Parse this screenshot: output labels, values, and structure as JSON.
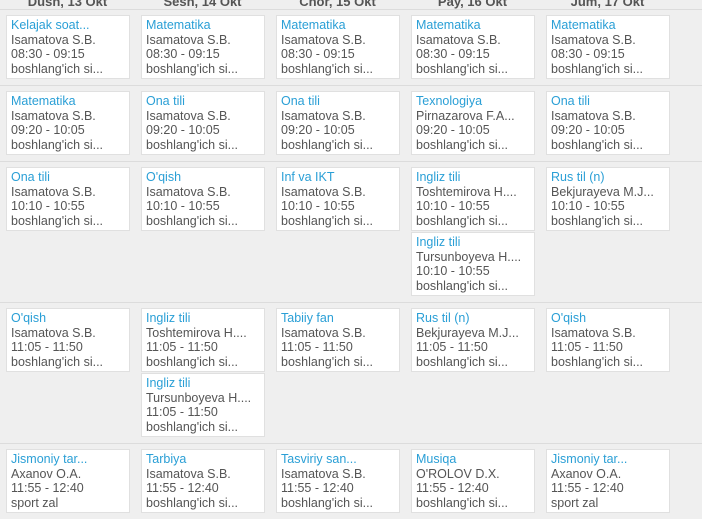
{
  "days": [
    "Dush, 13 Okt",
    "Sesh, 14 Okt",
    "Chor, 15 Okt",
    "Pay, 16 Okt",
    "Jum, 17 Okt"
  ],
  "colors": {
    "subject": "#2a9fd6",
    "text": "#555555",
    "background": "#efefef"
  },
  "rows": [
    {
      "cells": [
        [
          {
            "subject": "Kelajak soat...",
            "teacher": "Isamatova S.B.",
            "time": "08:30 - 09:15",
            "room": "boshlang'ich si..."
          }
        ],
        [
          {
            "subject": "Matematika",
            "teacher": "Isamatova S.B.",
            "time": "08:30 - 09:15",
            "room": "boshlang'ich si..."
          }
        ],
        [
          {
            "subject": "Matematika",
            "teacher": "Isamatova S.B.",
            "time": "08:30 - 09:15",
            "room": "boshlang'ich si..."
          }
        ],
        [
          {
            "subject": "Matematika",
            "teacher": "Isamatova S.B.",
            "time": "08:30 - 09:15",
            "room": "boshlang'ich si..."
          }
        ],
        [
          {
            "subject": "Matematika",
            "teacher": "Isamatova S.B.",
            "time": "08:30 - 09:15",
            "room": "boshlang'ich si..."
          }
        ]
      ]
    },
    {
      "cells": [
        [
          {
            "subject": "Matematika",
            "teacher": "Isamatova S.B.",
            "time": "09:20 - 10:05",
            "room": "boshlang'ich si..."
          }
        ],
        [
          {
            "subject": "Ona tili",
            "teacher": "Isamatova S.B.",
            "time": "09:20 - 10:05",
            "room": "boshlang'ich si..."
          }
        ],
        [
          {
            "subject": "Ona tili",
            "teacher": "Isamatova S.B.",
            "time": "09:20 - 10:05",
            "room": "boshlang'ich si..."
          }
        ],
        [
          {
            "subject": "Texnologiya",
            "teacher": "Pirnazarova F.A...",
            "time": "09:20 - 10:05",
            "room": "boshlang'ich si..."
          }
        ],
        [
          {
            "subject": "Ona tili",
            "teacher": "Isamatova S.B.",
            "time": "09:20 - 10:05",
            "room": "boshlang'ich si..."
          }
        ]
      ]
    },
    {
      "cells": [
        [
          {
            "subject": "Ona tili",
            "teacher": "Isamatova S.B.",
            "time": "10:10 - 10:55",
            "room": "boshlang'ich si..."
          }
        ],
        [
          {
            "subject": "O'qish",
            "teacher": "Isamatova S.B.",
            "time": "10:10 - 10:55",
            "room": "boshlang'ich si..."
          }
        ],
        [
          {
            "subject": "Inf va IKT",
            "teacher": "Isamatova S.B.",
            "time": "10:10 - 10:55",
            "room": "boshlang'ich si..."
          }
        ],
        [
          {
            "subject": "Ingliz tili",
            "teacher": "Toshtemirova H....",
            "time": "10:10 - 10:55",
            "room": "boshlang'ich si..."
          },
          {
            "subject": "Ingliz tili",
            "teacher": "Tursunboyeva H....",
            "time": "10:10 - 10:55",
            "room": "boshlang'ich si..."
          }
        ],
        [
          {
            "subject": "Rus til (n)",
            "teacher": "Bekjurayeva M.J...",
            "time": "10:10 - 10:55",
            "room": "boshlang'ich si..."
          }
        ]
      ]
    },
    {
      "cells": [
        [
          {
            "subject": "O'qish",
            "teacher": "Isamatova S.B.",
            "time": "11:05 - 11:50",
            "room": "boshlang'ich si..."
          }
        ],
        [
          {
            "subject": "Ingliz tili",
            "teacher": "Toshtemirova H....",
            "time": "11:05 - 11:50",
            "room": "boshlang'ich si..."
          },
          {
            "subject": "Ingliz tili",
            "teacher": "Tursunboyeva H....",
            "time": "11:05 - 11:50",
            "room": "boshlang'ich si..."
          }
        ],
        [
          {
            "subject": "Tabiiy fan",
            "teacher": "Isamatova S.B.",
            "time": "11:05 - 11:50",
            "room": "boshlang'ich si..."
          }
        ],
        [
          {
            "subject": "Rus til (n)",
            "teacher": "Bekjurayeva M.J...",
            "time": "11:05 - 11:50",
            "room": "boshlang'ich si..."
          }
        ],
        [
          {
            "subject": "O'qish",
            "teacher": "Isamatova S.B.",
            "time": "11:05 - 11:50",
            "room": "boshlang'ich si..."
          }
        ]
      ]
    },
    {
      "cells": [
        [
          {
            "subject": "Jismoniy tar...",
            "teacher": "Axanov O.A.",
            "time": "11:55 - 12:40",
            "room": "sport zal"
          }
        ],
        [
          {
            "subject": "Tarbiya",
            "teacher": "Isamatova S.B.",
            "time": "11:55 - 12:40",
            "room": "boshlang'ich si..."
          }
        ],
        [
          {
            "subject": "Tasviriy san...",
            "teacher": "Isamatova S.B.",
            "time": "11:55 - 12:40",
            "room": "boshlang'ich si..."
          }
        ],
        [
          {
            "subject": "Musiqa",
            "teacher": "O'ROLOV D.X.",
            "time": "11:55 - 12:40",
            "room": "boshlang'ich si..."
          }
        ],
        [
          {
            "subject": "Jismoniy tar...",
            "teacher": "Axanov O.A.",
            "time": "11:55 - 12:40",
            "room": "sport zal"
          }
        ]
      ]
    }
  ]
}
